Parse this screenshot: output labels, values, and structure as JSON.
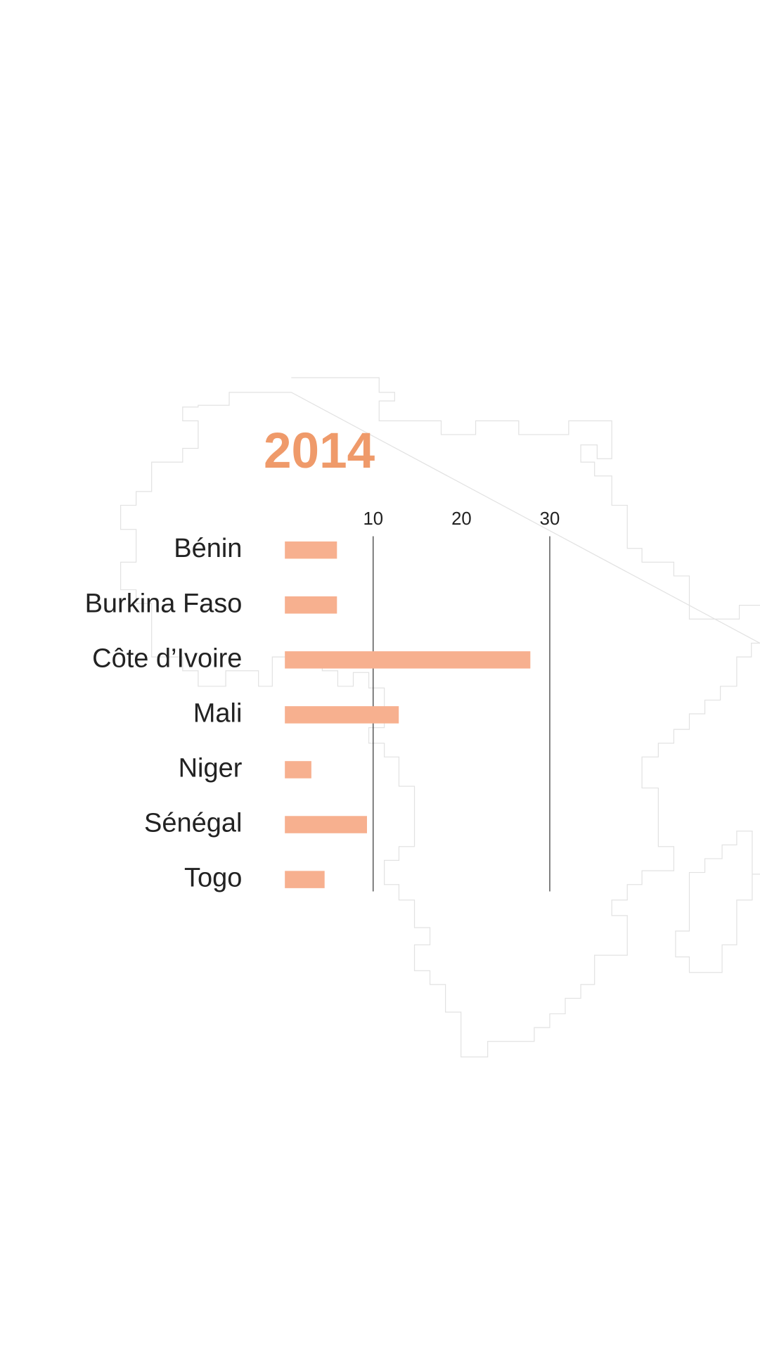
{
  "chart_data": {
    "type": "bar",
    "orientation": "horizontal",
    "title": "2014",
    "categories": [
      "Bénin",
      "Burkina Faso",
      "Côte d’Ivoire",
      "Mali",
      "Niger",
      "Sénégal",
      "Togo"
    ],
    "values": [
      5.9,
      5.9,
      27.8,
      12.9,
      3.0,
      9.3,
      4.5
    ],
    "color": "#f7b08f",
    "title_color": "#ef9a6a",
    "xlim": [
      -2.4,
      40
    ],
    "xticks": [
      10,
      20,
      30
    ],
    "xgrid": [
      10,
      30
    ]
  }
}
